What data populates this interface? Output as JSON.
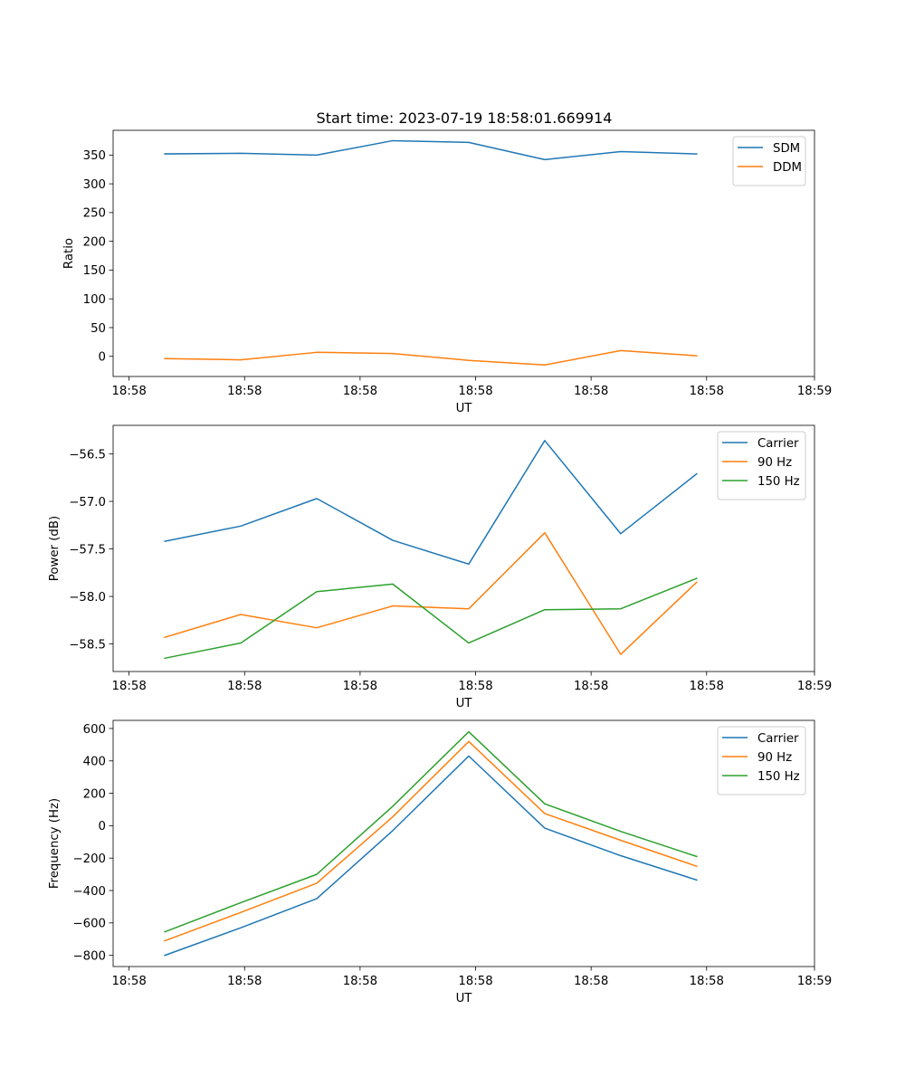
{
  "title": "Start time: 2023-07-19 18:58:01.669914",
  "colors": {
    "blue": "#1f77b4",
    "orange": "#ff7f0e",
    "green": "#2ca02c"
  },
  "chart_data": [
    {
      "type": "line",
      "title": "Start time: 2023-07-19 18:58:01.669914",
      "xlabel": "UT",
      "ylabel": "Ratio",
      "xlim": [
        -0.68,
        8.55
      ],
      "ylim": [
        -35,
        393
      ],
      "x": [
        0,
        1,
        2,
        3,
        4,
        5,
        6,
        7
      ],
      "xticks": [
        -0.47,
        1.05,
        2.57,
        4.09,
        5.61,
        7.13,
        8.55
      ],
      "xtick_labels": [
        "18:58",
        "18:58",
        "18:58",
        "18:58",
        "18:58",
        "18:58",
        "18:59"
      ],
      "yticks": [
        0,
        50,
        100,
        150,
        200,
        250,
        300,
        350
      ],
      "ytick_labels": [
        "0",
        "50",
        "100",
        "150",
        "200",
        "250",
        "300",
        "350"
      ],
      "legend": "top-right",
      "series": [
        {
          "name": "SDM",
          "color": "#1f77b4",
          "values": [
            352,
            353,
            350,
            375,
            372,
            342,
            356,
            352
          ]
        },
        {
          "name": "DDM",
          "color": "#ff7f0e",
          "values": [
            -4,
            -6,
            7,
            5,
            -7,
            -15,
            10,
            1
          ]
        }
      ]
    },
    {
      "type": "line",
      "title": "",
      "xlabel": "UT",
      "ylabel": "Power (dB)",
      "xlim": [
        -0.68,
        8.55
      ],
      "ylim": [
        -58.79,
        -56.2
      ],
      "x": [
        0,
        1,
        2,
        3,
        4,
        5,
        6,
        7
      ],
      "xticks": [
        -0.47,
        1.05,
        2.57,
        4.09,
        5.61,
        7.13,
        8.55
      ],
      "xtick_labels": [
        "18:58",
        "18:58",
        "18:58",
        "18:58",
        "18:58",
        "18:58",
        "18:59"
      ],
      "yticks": [
        -58.5,
        -58.0,
        -57.5,
        -57.0,
        -56.5
      ],
      "ytick_labels": [
        "−58.5",
        "−58.0",
        "−57.5",
        "−57.0",
        "−56.5"
      ],
      "legend": "top-right",
      "series": [
        {
          "name": "Carrier",
          "color": "#1f77b4",
          "values": [
            -57.42,
            -57.26,
            -56.97,
            -57.41,
            -57.66,
            -56.36,
            -57.34,
            -56.71
          ]
        },
        {
          "name": "90 Hz",
          "color": "#ff7f0e",
          "values": [
            -58.43,
            -58.19,
            -58.33,
            -58.1,
            -58.13,
            -57.33,
            -58.61,
            -57.85
          ]
        },
        {
          "name": "150 Hz",
          "color": "#2ca02c",
          "values": [
            -58.65,
            -58.49,
            -57.95,
            -57.87,
            -58.49,
            -58.14,
            -58.13,
            -57.81
          ]
        }
      ]
    },
    {
      "type": "line",
      "title": "",
      "xlabel": "UT",
      "ylabel": "Frequency (Hz)",
      "xlim": [
        -0.68,
        8.55
      ],
      "ylim": [
        -869,
        650
      ],
      "x": [
        0,
        1,
        2,
        3,
        4,
        5,
        6,
        7
      ],
      "xticks": [
        -0.47,
        1.05,
        2.57,
        4.09,
        5.61,
        7.13,
        8.55
      ],
      "xtick_labels": [
        "18:58",
        "18:58",
        "18:58",
        "18:58",
        "18:58",
        "18:58",
        "18:59"
      ],
      "yticks": [
        -800,
        -600,
        -400,
        -200,
        0,
        200,
        400,
        600
      ],
      "ytick_labels": [
        "−800",
        "−600",
        "−400",
        "−200",
        "0",
        "200",
        "400",
        "600"
      ],
      "legend": "top-right",
      "series": [
        {
          "name": "Carrier",
          "color": "#1f77b4",
          "values": [
            -800,
            -630,
            -450,
            -30,
            430,
            -15,
            -185,
            -335
          ]
        },
        {
          "name": "90 Hz",
          "color": "#ff7f0e",
          "values": [
            -710,
            -535,
            -355,
            55,
            520,
            75,
            -90,
            -250
          ]
        },
        {
          "name": "150 Hz",
          "color": "#2ca02c",
          "values": [
            -655,
            -475,
            -300,
            120,
            580,
            135,
            -35,
            -190
          ]
        }
      ]
    }
  ]
}
